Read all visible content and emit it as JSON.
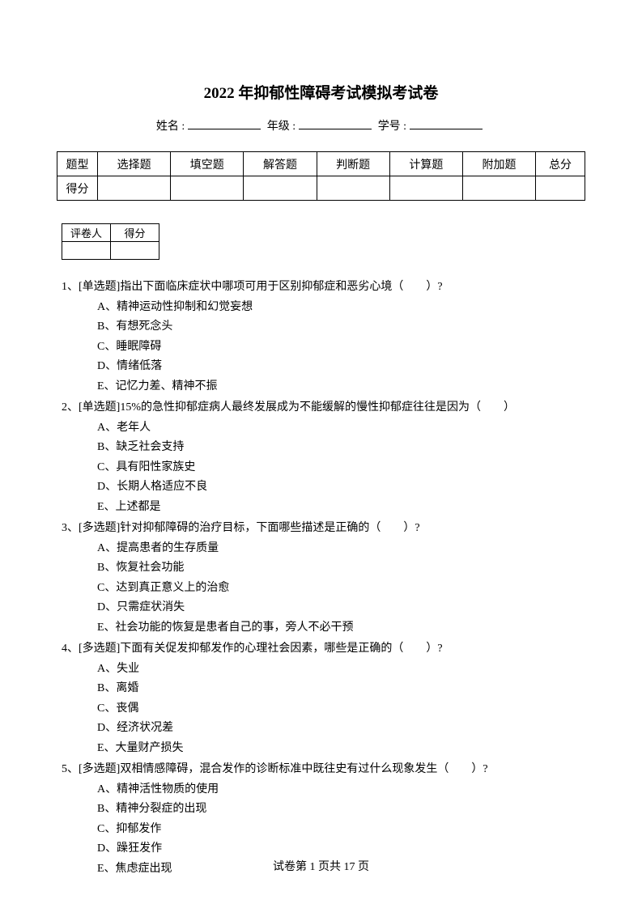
{
  "title": "2022 年抑郁性障碍考试模拟考试卷",
  "info": {
    "name_label": "姓名 :",
    "grade_label": "年级 :",
    "id_label": "学号 :"
  },
  "score_table": {
    "headers": [
      "题型",
      "选择题",
      "填空题",
      "解答题",
      "判断题",
      "计算题",
      "附加题",
      "总分"
    ],
    "row_label": "得分"
  },
  "grader_table": {
    "headers": [
      "评卷人",
      "得分"
    ]
  },
  "questions": [
    {
      "number": "1、",
      "type": "[单选题]",
      "stem": "指出下面临床症状中哪项可用于区别抑郁症和恶劣心境（　　）?",
      "options": [
        "A、精神运动性抑制和幻觉妄想",
        "B、有想死念头",
        "C、睡眠障碍",
        "D、情绪低落",
        "E、记忆力差、精神不振"
      ]
    },
    {
      "number": "2、",
      "type": "[单选题]",
      "stem": "15%的急性抑郁症病人最终发展成为不能缓解的慢性抑郁症往往是因为（　　）",
      "options": [
        "A、老年人",
        "B、缺乏社会支持",
        "C、具有阳性家族史",
        "D、长期人格适应不良",
        "E、上述都是"
      ]
    },
    {
      "number": "3、",
      "type": "[多选题]",
      "stem": "针对抑郁障碍的治疗目标，下面哪些描述是正确的（　　）?",
      "options": [
        "A、提高患者的生存质量",
        "B、恢复社会功能",
        "C、达到真正意义上的治愈",
        "D、只需症状消失",
        "E、社会功能的恢复是患者自己的事，旁人不必干预"
      ]
    },
    {
      "number": "4、",
      "type": "[多选题]",
      "stem": "下面有关促发抑郁发作的心理社会因素，哪些是正确的（　　）?",
      "options": [
        "A、失业",
        "B、离婚",
        "C、丧偶",
        "D、经济状况差",
        "E、大量财产损失"
      ]
    },
    {
      "number": "5、",
      "type": "[多选题]",
      "stem": "双相情感障碍，混合发作的诊断标准中既往史有过什么现象发生（　　）?",
      "options": [
        "A、精神活性物质的使用",
        "B、精神分裂症的出现",
        "C、抑郁发作",
        "D、躁狂发作",
        "E、焦虑症出现"
      ]
    }
  ],
  "footer": {
    "text": "试卷第 1 页共 17 页"
  }
}
